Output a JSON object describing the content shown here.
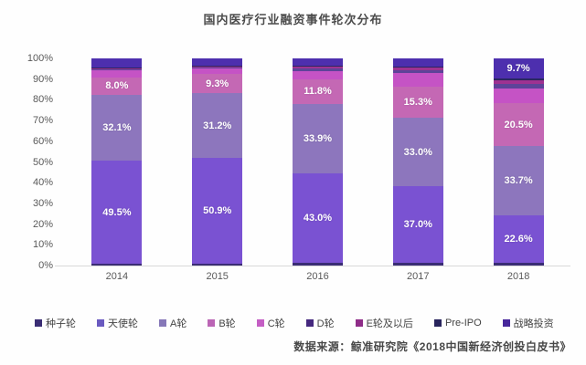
{
  "title": "国内医疗行业融资事件轮次分布",
  "source": "数据来源：鲸准研究院《2018中国新经济创投白皮书》",
  "chart_data": {
    "type": "bar",
    "stacked": true,
    "orientation": "vertical",
    "title": "国内医疗行业融资事件轮次分布",
    "categories": [
      "2014",
      "2015",
      "2016",
      "2017",
      "2018"
    ],
    "yticks": [
      "0%",
      "10%",
      "20%",
      "30%",
      "40%",
      "50%",
      "60%",
      "70%",
      "80%",
      "90%",
      "100%"
    ],
    "ylim": [
      0,
      100
    ],
    "grid": false,
    "legend_position": "bottom",
    "series": [
      {
        "name": "种子轮",
        "color": "#3a2d74",
        "values": [
          1.0,
          1.0,
          1.3,
          1.2,
          1.5
        ],
        "labels": [
          null,
          null,
          null,
          null,
          null
        ]
      },
      {
        "name": "天使轮",
        "color": "#7a52d2",
        "values": [
          49.5,
          50.9,
          43.0,
          37.0,
          22.6
        ],
        "labels": [
          "49.5%",
          "50.9%",
          "43.0%",
          "37.0%",
          "22.6%"
        ]
      },
      {
        "name": "A轮",
        "color": "#8d76bd",
        "values": [
          32.1,
          31.2,
          33.9,
          33.0,
          33.7
        ],
        "labels": [
          "32.1%",
          "31.2%",
          "33.9%",
          "33.0%",
          "33.7%"
        ]
      },
      {
        "name": "B轮",
        "color": "#c468b4",
        "values": [
          8.0,
          9.3,
          11.8,
          15.3,
          20.5
        ],
        "labels": [
          "8.0%",
          "9.3%",
          "11.8%",
          "15.3%",
          "20.5%"
        ]
      },
      {
        "name": "C轮",
        "color": "#c553c5",
        "values": [
          3.5,
          2.6,
          4.0,
          6.3,
          7.0
        ],
        "labels": [
          null,
          null,
          null,
          null,
          null
        ]
      },
      {
        "name": "D轮",
        "color": "#5e4399",
        "values": [
          0.5,
          0.5,
          1.0,
          1.5,
          2.5
        ],
        "labels": [
          null,
          null,
          null,
          null,
          null
        ]
      },
      {
        "name": "E轮及以后",
        "color": "#9e3291",
        "values": [
          0.5,
          0.5,
          1.0,
          1.2,
          1.5
        ],
        "labels": [
          null,
          null,
          null,
          null,
          null
        ]
      },
      {
        "name": "Pre-IPO",
        "color": "#2b2660",
        "values": [
          0.5,
          0.5,
          0.5,
          0.5,
          1.0
        ],
        "labels": [
          null,
          null,
          null,
          null,
          null
        ]
      },
      {
        "name": "战略投资",
        "color": "#4d2fae",
        "values": [
          4.4,
          3.5,
          3.5,
          4.0,
          9.7
        ],
        "labels": [
          null,
          null,
          null,
          null,
          "9.7%"
        ]
      }
    ]
  },
  "legend": [
    {
      "label": "种子轮",
      "color": "#3a2d74"
    },
    {
      "label": "天使轮",
      "color": "#6a5ac0"
    },
    {
      "label": "A轮",
      "color": "#8678b8"
    },
    {
      "label": "B轮",
      "color": "#bb65b5"
    },
    {
      "label": "C轮",
      "color": "#c45ec4"
    },
    {
      "label": "D轮",
      "color": "#45287e"
    },
    {
      "label": "E轮及以后",
      "color": "#8f2d88"
    },
    {
      "label": "Pre-IPO",
      "color": "#28245c"
    },
    {
      "label": "战略投资",
      "color": "#47279b"
    }
  ]
}
